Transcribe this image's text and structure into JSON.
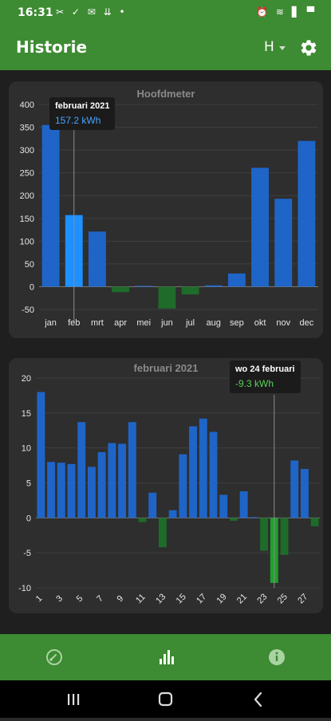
{
  "status_bar": {
    "time": "16:31",
    "left_icons": "✂ ✓ ✉ ⇊ •",
    "right_icons": "⏰ ≋ ▋ ▀"
  },
  "appbar": {
    "title": "Historie",
    "mode_label": "H"
  },
  "colors": {
    "bar_blue": "#1f65c8",
    "bar_selected": "#1e90ff",
    "bar_green": "#1f6b2a",
    "bar_green_selected": "#1fa12b",
    "appbar": "#3d8b32"
  },
  "chart1_tooltip": {
    "title": "februari 2021",
    "value": "157.2 kWh",
    "color": "#4aa3ff"
  },
  "chart2_tooltip": {
    "title": "wo 24 februari",
    "value": "-9.3 kWh",
    "color": "#57d357"
  },
  "chart_data": [
    {
      "type": "bar",
      "title": "Hoofdmeter",
      "categories": [
        "jan",
        "feb",
        "mrt",
        "apr",
        "mei",
        "jun",
        "jul",
        "aug",
        "sep",
        "okt",
        "nov",
        "dec"
      ],
      "values": [
        355,
        157.2,
        121,
        -12,
        2,
        -48,
        -17,
        3,
        29,
        261,
        193,
        320
      ],
      "selected_index": 1,
      "ylim": [
        -50,
        400
      ],
      "yticks": [
        -50,
        0,
        50,
        100,
        150,
        200,
        250,
        300,
        350,
        400
      ],
      "grid": true
    },
    {
      "type": "bar",
      "title": "februari 2021",
      "categories": [
        "1",
        "2",
        "3",
        "4",
        "5",
        "6",
        "7",
        "8",
        "9",
        "10",
        "11",
        "12",
        "13",
        "14",
        "15",
        "16",
        "17",
        "18",
        "19",
        "20",
        "21",
        "22",
        "23",
        "24",
        "25",
        "26",
        "27",
        "28"
      ],
      "values": [
        18,
        8,
        7.9,
        7.7,
        13.7,
        7.3,
        9.4,
        10.7,
        10.6,
        13.7,
        -0.6,
        3.6,
        -4.2,
        1.1,
        9.1,
        13.1,
        14.2,
        12.3,
        3.3,
        -0.4,
        3.8,
        0,
        -4.7,
        -9.3,
        -5.3,
        8.2,
        7,
        -1.2
      ],
      "selected_index": 23,
      "ylim": [
        -10,
        20
      ],
      "yticks": [
        -10,
        -5,
        0,
        5,
        10,
        15,
        20
      ],
      "xtick_labels": [
        "1",
        "3",
        "5",
        "7",
        "9",
        "11",
        "13",
        "15",
        "17",
        "19",
        "21",
        "23",
        "25",
        "27"
      ],
      "grid": true
    }
  ]
}
